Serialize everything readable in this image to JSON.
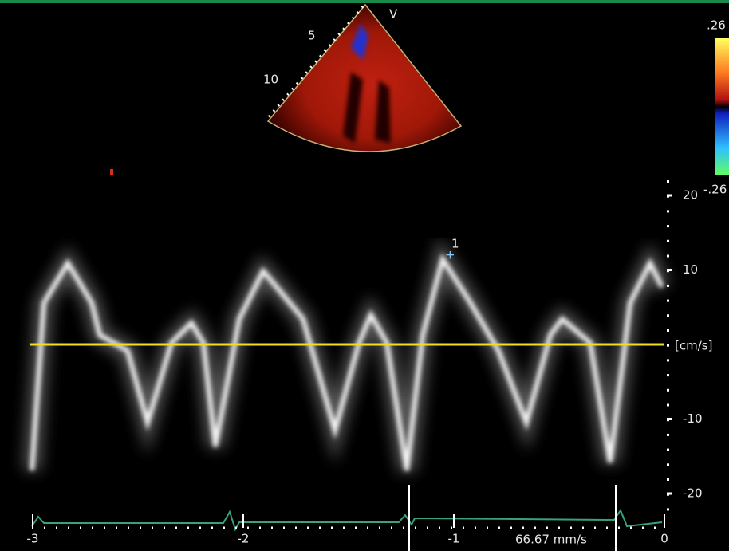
{
  "sector": {
    "view": "V",
    "depth_labels": [
      "5",
      "10"
    ]
  },
  "color_scale": {
    "top": ".26",
    "bottom": "-.26"
  },
  "velocity_axis": {
    "ticks": [
      20,
      10,
      -10,
      -20
    ],
    "unit": "[cm/s]"
  },
  "time_axis": {
    "ticks": [
      -3,
      -2,
      -1,
      0
    ]
  },
  "sweep_speed": "66.67 mm/s",
  "marker": "1"
}
